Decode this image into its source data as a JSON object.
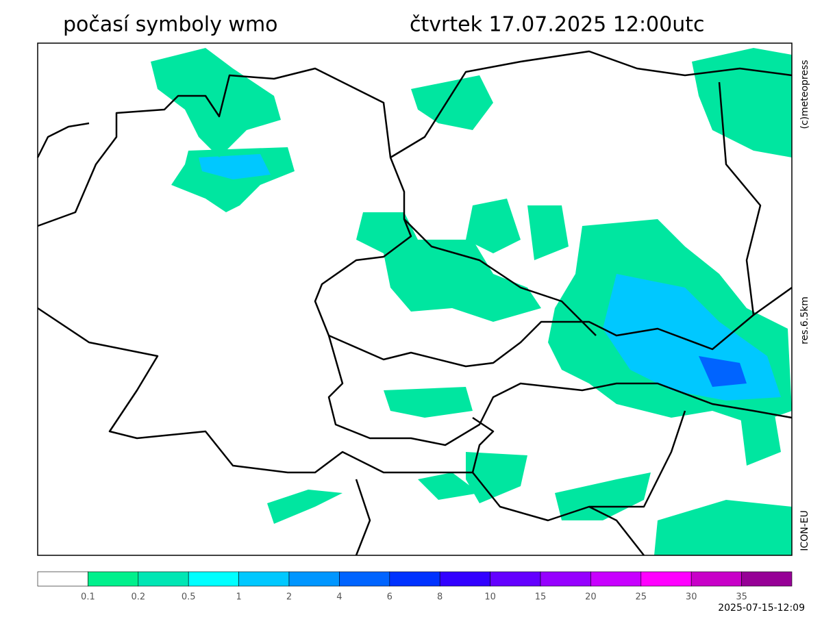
{
  "header": {
    "title": "počasí symboly wmo",
    "valid_time": "čtvrtek 17.07.2025 12:00utc"
  },
  "side_labels": {
    "copyright": "(c)meteopress",
    "resolution": "res.6.5km",
    "model": "ICON-EU"
  },
  "colorbar": {
    "colors": [
      "#ffffff",
      "#00f08c",
      "#00e6b4",
      "#00ffff",
      "#00c8ff",
      "#0096ff",
      "#0064ff",
      "#0032ff",
      "#3200ff",
      "#6400ff",
      "#9600ff",
      "#c800ff",
      "#ff00ff",
      "#c800c8",
      "#960096"
    ],
    "labels": [
      "0.1",
      "0.2",
      "0.5",
      "1",
      "2",
      "4",
      "6",
      "8",
      "10",
      "15",
      "20",
      "25",
      "30",
      "35"
    ]
  },
  "footer": {
    "run_time": "2025-07-15-12:09"
  }
}
